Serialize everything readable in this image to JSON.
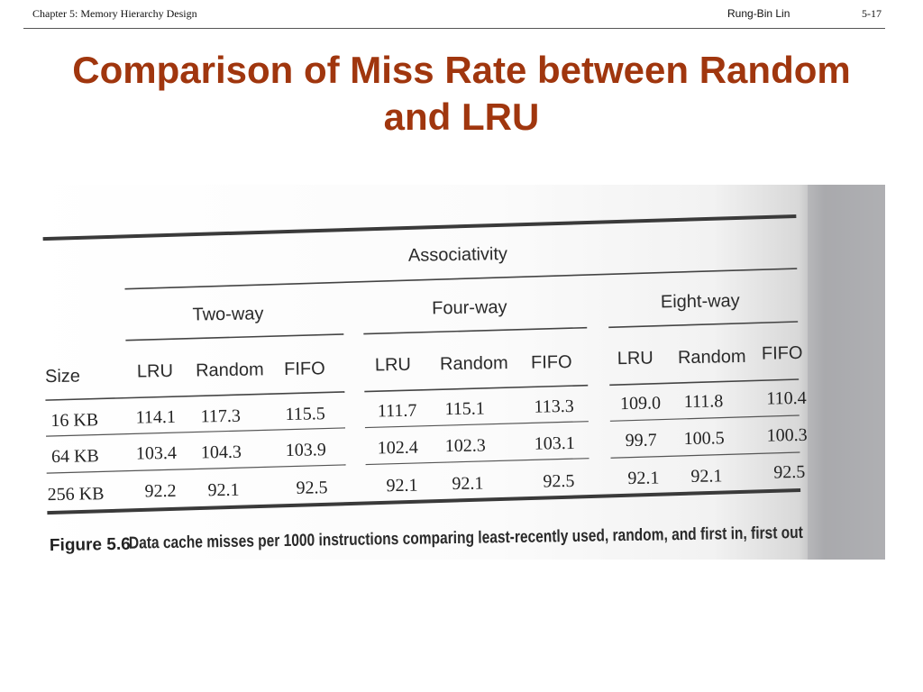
{
  "header": {
    "chapter": "Chapter 5: Memory Hierarchy Design",
    "author": "Rung-Bin Lin",
    "page": "5-17"
  },
  "title": {
    "line1": "Comparison of Miss Rate between Random",
    "line2": "and LRU"
  },
  "table": {
    "super_header": "Associativity",
    "groups": [
      "Two-way",
      "Four-way",
      "Eight-way"
    ],
    "size_header": "Size",
    "columns": [
      "LRU",
      "Random",
      "FIFO",
      "LRU",
      "Random",
      "FIFO",
      "LRU",
      "Random",
      "FIFO"
    ],
    "rows": [
      {
        "size": "16 KB",
        "values": [
          "114.1",
          "117.3",
          "115.5",
          "111.7",
          "115.1",
          "113.3",
          "109.0",
          "111.8",
          "110.4"
        ]
      },
      {
        "size": "64 KB",
        "values": [
          "103.4",
          "104.3",
          "103.9",
          "102.4",
          "102.3",
          "103.1",
          "99.7",
          "100.5",
          "100.3"
        ]
      },
      {
        "size": "256 KB",
        "values": [
          "92.2",
          "92.1",
          "92.5",
          "92.1",
          "92.1",
          "92.5",
          "92.1",
          "92.1",
          "92.5"
        ]
      }
    ]
  },
  "caption": {
    "label": "Figure 5.6",
    "text": "Data cache misses per 1000 instructions comparing least-recently used, random, and first in, first out"
  },
  "colors": {
    "title": "#a0360e",
    "text": "#222222",
    "page_shadow": "#a9aaad"
  }
}
